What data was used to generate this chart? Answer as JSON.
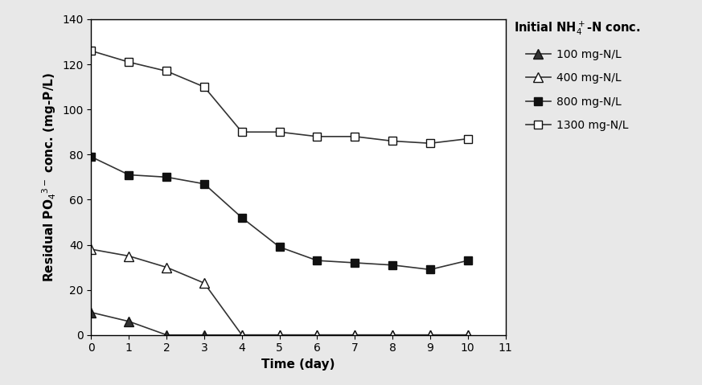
{
  "xlabel": "Time (day)",
  "xlim": [
    0,
    11
  ],
  "ylim": [
    0,
    140
  ],
  "xticks": [
    0,
    1,
    2,
    3,
    4,
    5,
    6,
    7,
    8,
    9,
    10,
    11
  ],
  "yticks": [
    0,
    20,
    40,
    60,
    80,
    100,
    120,
    140
  ],
  "series": [
    {
      "label": "100 mg-N/L",
      "x": [
        0,
        1,
        2,
        3,
        4,
        5,
        6,
        7,
        8,
        9,
        10
      ],
      "y": [
        10,
        6,
        0,
        0,
        0,
        0,
        0,
        0,
        0,
        0,
        0
      ],
      "color": "#333333",
      "marker": "^",
      "mfc": "#333333",
      "mec": "#111111"
    },
    {
      "label": "400 mg-N/L",
      "x": [
        0,
        1,
        2,
        3,
        4,
        5,
        6,
        7,
        8,
        9,
        10
      ],
      "y": [
        38,
        35,
        30,
        23,
        0,
        0,
        0,
        0,
        0,
        0,
        0
      ],
      "color": "#333333",
      "marker": "^",
      "mfc": "white",
      "mec": "#111111"
    },
    {
      "label": "800 mg-N/L",
      "x": [
        0,
        1,
        2,
        3,
        4,
        5,
        6,
        7,
        8,
        9,
        10
      ],
      "y": [
        79,
        71,
        70,
        67,
        52,
        39,
        33,
        32,
        31,
        29,
        33
      ],
      "color": "#333333",
      "marker": "s",
      "mfc": "#111111",
      "mec": "#111111"
    },
    {
      "label": "1300 mg-N/L",
      "x": [
        0,
        1,
        2,
        3,
        4,
        5,
        6,
        7,
        8,
        9,
        10
      ],
      "y": [
        126,
        121,
        117,
        110,
        90,
        90,
        88,
        88,
        86,
        85,
        87
      ],
      "color": "#333333",
      "marker": "s",
      "mfc": "white",
      "mec": "#111111"
    }
  ],
  "legend_title": "Initial NH$_4^+$-N conc.",
  "outer_bg": "#e8e8e8",
  "inner_bg": "#ffffff",
  "figsize": [
    8.73,
    4.79
  ],
  "dpi": 100
}
